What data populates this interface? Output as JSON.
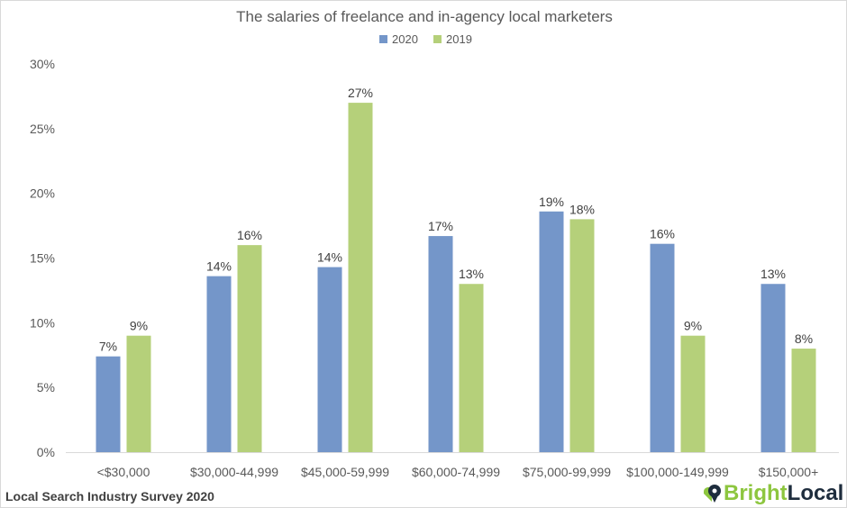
{
  "chart_data": {
    "type": "bar",
    "title": "The salaries of freelance and in-agency local marketers",
    "categories": [
      "<$30,000",
      "$30,000-44,999",
      "$45,000-59,999",
      "$60,000-74,999",
      "$75,000-99,999",
      "$100,000-149,999",
      "$150,000+"
    ],
    "series": [
      {
        "name": "2020",
        "color": "#7496c9",
        "values": [
          7.4,
          13.6,
          14.3,
          16.7,
          18.6,
          16.1,
          13.0
        ],
        "labels": [
          "7%",
          "14%",
          "14%",
          "17%",
          "19%",
          "16%",
          "13%"
        ]
      },
      {
        "name": "2019",
        "color": "#b5d07a",
        "values": [
          9,
          16,
          27,
          13,
          18,
          9,
          8
        ],
        "labels": [
          "9%",
          "16%",
          "27%",
          "13%",
          "18%",
          "9%",
          "8%"
        ]
      }
    ],
    "ylim": [
      0,
      30
    ],
    "yticks": [
      "0%",
      "5%",
      "10%",
      "15%",
      "20%",
      "25%",
      "30%"
    ],
    "grid": false,
    "legend": "top"
  },
  "footer": {
    "source": "Local Search Industry Survey 2020",
    "logo_bright": "Bright",
    "logo_local": "Local"
  }
}
